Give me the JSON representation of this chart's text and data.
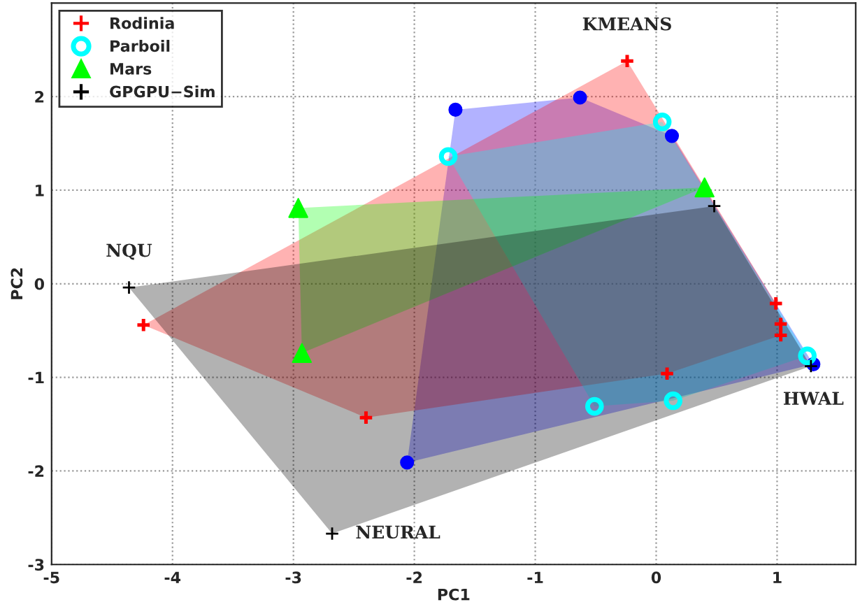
{
  "chart_data": {
    "type": "scatter",
    "xlabel": "PC1",
    "ylabel": "PC2",
    "xlim": [
      -5,
      1.65
    ],
    "ylim": [
      -3,
      3
    ],
    "xticks": [
      -5,
      -4,
      -3,
      -2,
      -1,
      0,
      1
    ],
    "yticks": [
      -3,
      -2,
      -1,
      0,
      1,
      2
    ],
    "grid": true,
    "legend": "top left",
    "series": [
      {
        "color": "#0000ff",
        "marker": "circle",
        "x": [
          -1.66,
          -0.63,
          0.13,
          1.3,
          -2.06
        ],
        "values": [
          1.86,
          1.99,
          1.58,
          -0.86,
          -1.91
        ]
      },
      {
        "name": "Rodinia",
        "color": "#ff0000",
        "marker": "cross",
        "x": [
          -0.24,
          -4.24,
          -2.4,
          0.09,
          0.99,
          1.03,
          1.03
        ],
        "values": [
          2.38,
          -0.44,
          -1.43,
          -0.96,
          -0.21,
          -0.43,
          -0.55
        ]
      },
      {
        "name": "Parboil",
        "color": "#00ffff",
        "marker": "circle",
        "x": [
          -1.72,
          0.05,
          1.25,
          -0.51,
          0.14
        ],
        "values": [
          1.36,
          1.73,
          -0.77,
          -1.31,
          -1.25
        ]
      },
      {
        "name": "Mars",
        "color": "#00ff00",
        "marker": "triangle",
        "x": [
          -2.96,
          -2.93,
          0.4
        ],
        "values": [
          0.81,
          -0.74,
          1.03
        ]
      },
      {
        "name": "GPGPU−Sim",
        "color": "#000000",
        "marker": "cross",
        "x": [
          -4.36,
          -2.68,
          0.48,
          1.28
        ],
        "values": [
          -0.04,
          -2.67,
          0.83,
          -0.88
        ]
      }
    ],
    "annotations": [
      {
        "text": "NQU",
        "x": -4.36,
        "y": -0.04
      },
      {
        "text": "KMEANS",
        "x": -0.24,
        "y": 2.38
      },
      {
        "text": "NEURAL",
        "x": -2.68,
        "y": -2.67
      },
      {
        "text": "HWAL",
        "x": 1.3,
        "y": -0.86
      }
    ]
  }
}
